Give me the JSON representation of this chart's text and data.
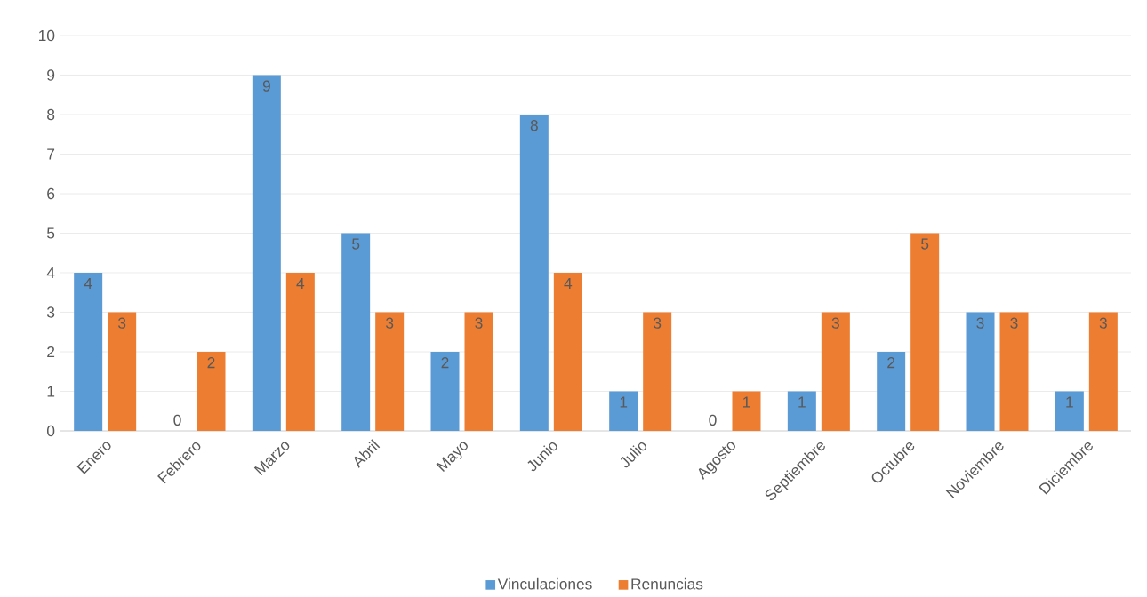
{
  "chart_data": {
    "type": "bar",
    "categories": [
      "Enero",
      "Febrero",
      "Marzo",
      "Abril",
      "Mayo",
      "Junio",
      "Julio",
      "Agosto",
      "Septiembre",
      "Octubre",
      "Noviembre",
      "Diciembre"
    ],
    "series": [
      {
        "name": "Vinculaciones",
        "color": "#5b9bd5",
        "values": [
          4,
          0,
          9,
          5,
          2,
          8,
          1,
          0,
          1,
          2,
          3,
          1
        ]
      },
      {
        "name": "Renuncias",
        "color": "#ed7d31",
        "values": [
          3,
          2,
          4,
          3,
          3,
          4,
          3,
          1,
          3,
          5,
          3,
          3
        ]
      }
    ],
    "ylim": [
      0,
      10
    ],
    "yticks": [
      0,
      1,
      2,
      3,
      4,
      5,
      6,
      7,
      8,
      9,
      10
    ],
    "grid": "y",
    "legend": "bottom",
    "data_labels": true
  }
}
